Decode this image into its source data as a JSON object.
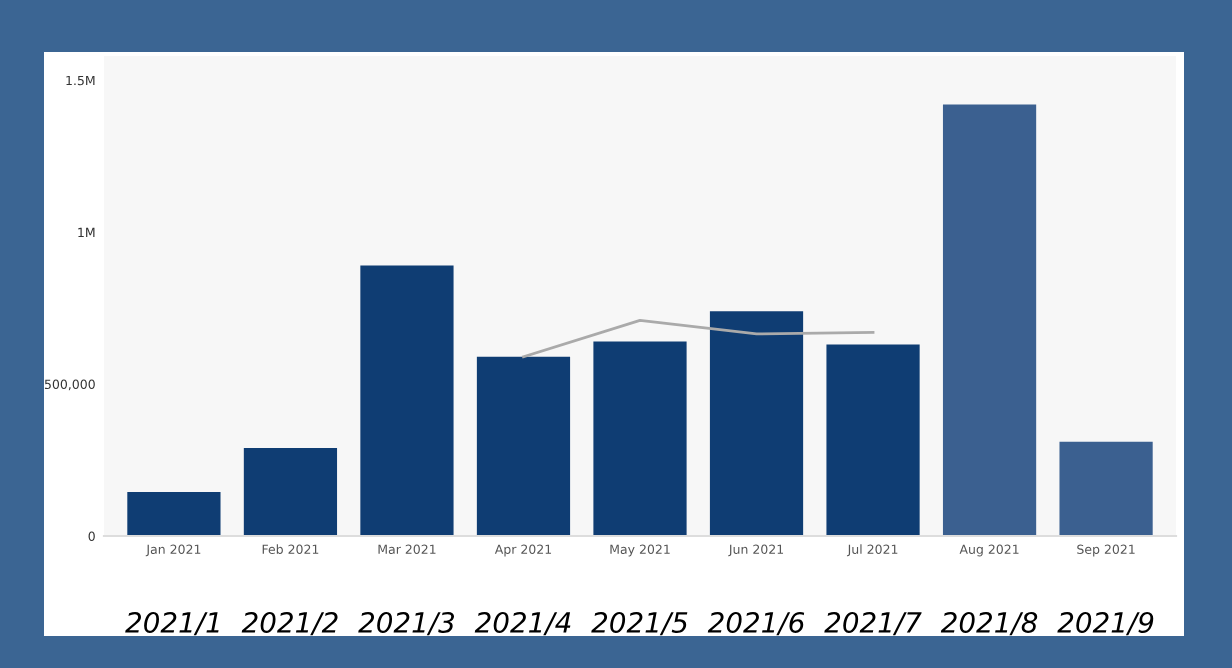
{
  "chart_data": {
    "type": "bar",
    "categories": [
      "Jan 2021",
      "Feb 2021",
      "Mar 2021",
      "Apr 2021",
      "May 2021",
      "Jun 2021",
      "Jul 2021",
      "Aug 2021",
      "Sep 2021"
    ],
    "series": [
      {
        "colors": [
          "#0f3d73",
          "#0f3d73",
          "#0f3d73",
          "#0f3d73",
          "#0f3d73",
          "#0f3d73",
          "#0f3d73",
          "#3b6090",
          "#3b6090"
        ],
        "values": [
          145000,
          290000,
          890000,
          590000,
          640000,
          740000,
          630000,
          1420000,
          310000
        ]
      },
      {
        "type": "line",
        "color": "#aaaaaa",
        "values": [
          null,
          null,
          null,
          590000,
          710000,
          665000,
          670000,
          null,
          null
        ]
      }
    ],
    "ylim": [
      0,
      1580000
    ],
    "yticks": [
      0,
      {
        "value": 500000,
        "label": "500,000"
      },
      {
        "value": 1000000,
        "label": "1M"
      },
      {
        "value": 1500000,
        "label": "1.5M"
      }
    ],
    "grid": false,
    "annotations": [
      "2021/1",
      "2021/2",
      "2021/3",
      "2021/4",
      "2021/5",
      "2021/6",
      "2021/7",
      "2021/8",
      "2021/9"
    ]
  }
}
